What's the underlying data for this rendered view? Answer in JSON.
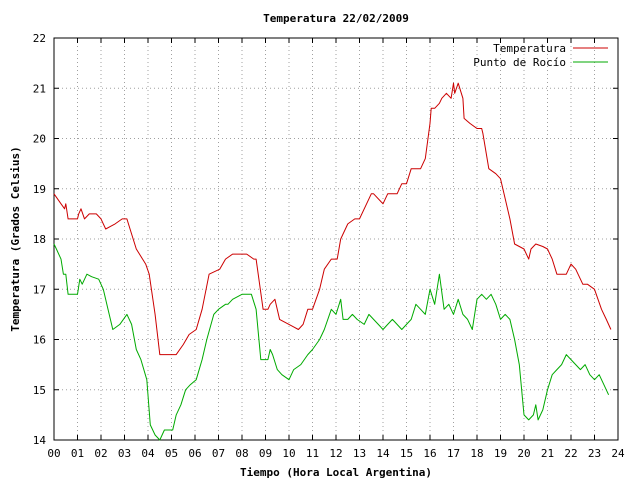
{
  "chart_data": {
    "type": "line",
    "title": "Temperatura 22/02/2009",
    "xlabel": "Tiempo (Hora Local Argentina)",
    "ylabel": "Temperatura (Grados Celsius)",
    "xlim": [
      0,
      24
    ],
    "ylim": [
      14,
      22
    ],
    "x_ticks": [
      0,
      1,
      2,
      3,
      4,
      5,
      6,
      7,
      8,
      9,
      10,
      11,
      12,
      13,
      14,
      15,
      16,
      17,
      18,
      19,
      20,
      21,
      22,
      23,
      24
    ],
    "x_tick_labels": [
      "00",
      "01",
      "02",
      "03",
      "04",
      "05",
      "06",
      "07",
      "08",
      "09",
      "10",
      "11",
      "12",
      "13",
      "14",
      "15",
      "16",
      "17",
      "18",
      "19",
      "20",
      "21",
      "22",
      "23",
      "24"
    ],
    "y_ticks": [
      14,
      15,
      16,
      17,
      18,
      19,
      20,
      21,
      22
    ],
    "y_tick_labels": [
      "14",
      "15",
      "16",
      "17",
      "18",
      "19",
      "20",
      "21",
      "22"
    ],
    "grid": true,
    "legend_position": "top-right",
    "series": [
      {
        "name": "Temperatura",
        "color": "#cc0000",
        "x": [
          0,
          0.15,
          0.3,
          0.45,
          0.5,
          0.6,
          1,
          1.05,
          1.15,
          1.3,
          1.5,
          1.8,
          2,
          2.2,
          2.4,
          2.6,
          2.9,
          3.1,
          3.3,
          3.5,
          3.9,
          4.05,
          4.3,
          4.5,
          4.8,
          5.05,
          5.2,
          5.5,
          5.75,
          6.05,
          6.3,
          6.6,
          7.05,
          7.3,
          7.6,
          7.9,
          8.2,
          8.5,
          8.6,
          8.9,
          9.1,
          9.2,
          9.4,
          9.6,
          10,
          10.2,
          10.4,
          10.6,
          10.8,
          11,
          11.3,
          11.5,
          11.8,
          12.05,
          12.2,
          12.5,
          12.8,
          13,
          13.3,
          13.5,
          13.6,
          14,
          14.2,
          14.4,
          14.6,
          14.8,
          15,
          15.2,
          15.4,
          15.6,
          15.8,
          16,
          16.05,
          16.2,
          16.4,
          16.5,
          16.7,
          16.9,
          17,
          17.05,
          17.2,
          17.4,
          17.45,
          17.7,
          18,
          18.2,
          18.25,
          18.5,
          18.8,
          19,
          19.2,
          19.4,
          19.6,
          19.8,
          20,
          20.2,
          20.3,
          20.5,
          20.8,
          21,
          21.2,
          21.4,
          21.6,
          21.8,
          22,
          22.2,
          22.5,
          22.7,
          23,
          23.3,
          23.5,
          23.7
        ],
        "values": [
          18.9,
          18.8,
          18.7,
          18.6,
          18.7,
          18.4,
          18.4,
          18.5,
          18.6,
          18.4,
          18.5,
          18.5,
          18.4,
          18.2,
          18.25,
          18.3,
          18.4,
          18.4,
          18.1,
          17.8,
          17.5,
          17.3,
          16.5,
          15.7,
          15.7,
          15.7,
          15.7,
          15.9,
          16.1,
          16.2,
          16.6,
          17.3,
          17.4,
          17.6,
          17.7,
          17.7,
          17.7,
          17.6,
          17.6,
          16.6,
          16.6,
          16.7,
          16.8,
          16.4,
          16.3,
          16.25,
          16.2,
          16.3,
          16.6,
          16.6,
          17,
          17.4,
          17.6,
          17.6,
          18,
          18.3,
          18.4,
          18.4,
          18.7,
          18.9,
          18.9,
          18.7,
          18.9,
          18.9,
          18.9,
          19.1,
          19.1,
          19.4,
          19.4,
          19.4,
          19.6,
          20.3,
          20.6,
          20.6,
          20.7,
          20.8,
          20.9,
          20.8,
          21.1,
          20.9,
          21.1,
          20.8,
          20.4,
          20.3,
          20.2,
          20.2,
          20.1,
          19.4,
          19.3,
          19.2,
          18.8,
          18.4,
          17.9,
          17.85,
          17.8,
          17.6,
          17.8,
          17.9,
          17.85,
          17.8,
          17.6,
          17.3,
          17.3,
          17.3,
          17.5,
          17.4,
          17.1,
          17.1,
          17,
          16.6,
          16.4,
          16.2
        ]
      },
      {
        "name": "Punto de Rocío",
        "color": "#00aa00",
        "x": [
          0,
          0.1,
          0.3,
          0.4,
          0.5,
          0.6,
          0.9,
          1,
          1.1,
          1.2,
          1.4,
          1.6,
          1.9,
          2.1,
          2.3,
          2.5,
          2.8,
          3.1,
          3.3,
          3.5,
          3.7,
          3.95,
          4.1,
          4.3,
          4.5,
          4.7,
          4.9,
          5.05,
          5.2,
          5.4,
          5.6,
          5.8,
          6.05,
          6.3,
          6.5,
          6.8,
          7,
          7.3,
          7.4,
          7.6,
          8,
          8.2,
          8.4,
          8.6,
          8.8,
          9.1,
          9.2,
          9.3,
          9.5,
          9.7,
          10,
          10.2,
          10.5,
          10.8,
          11,
          11.3,
          11.5,
          11.8,
          12,
          12.2,
          12.3,
          12.5,
          12.7,
          12.9,
          13.2,
          13.4,
          13.6,
          13.8,
          14,
          14.2,
          14.4,
          14.6,
          14.8,
          15,
          15.2,
          15.4,
          15.6,
          15.8,
          16,
          16.2,
          16.4,
          16.6,
          16.8,
          17,
          17.2,
          17.4,
          17.6,
          17.8,
          18,
          18.2,
          18.4,
          18.6,
          18.8,
          19,
          19.2,
          19.4,
          19.6,
          19.8,
          20,
          20.2,
          20.4,
          20.5,
          20.6,
          20.8,
          21,
          21.2,
          21.4,
          21.6,
          21.8,
          22,
          22.2,
          22.4,
          22.6,
          22.8,
          23,
          23.2,
          23.4,
          23.6
        ],
        "values": [
          17.9,
          17.8,
          17.6,
          17.3,
          17.3,
          16.9,
          16.9,
          16.9,
          17.2,
          17.1,
          17.3,
          17.25,
          17.2,
          17,
          16.6,
          16.2,
          16.3,
          16.5,
          16.3,
          15.8,
          15.6,
          15.2,
          14.3,
          14.1,
          14,
          14.2,
          14.2,
          14.2,
          14.5,
          14.7,
          15,
          15.1,
          15.2,
          15.6,
          16,
          16.5,
          16.6,
          16.7,
          16.7,
          16.8,
          16.9,
          16.9,
          16.9,
          16.6,
          15.6,
          15.6,
          15.8,
          15.7,
          15.4,
          15.3,
          15.2,
          15.4,
          15.5,
          15.7,
          15.8,
          16,
          16.2,
          16.6,
          16.5,
          16.8,
          16.4,
          16.4,
          16.5,
          16.4,
          16.3,
          16.5,
          16.4,
          16.3,
          16.2,
          16.3,
          16.4,
          16.3,
          16.2,
          16.3,
          16.4,
          16.7,
          16.6,
          16.5,
          17,
          16.7,
          17.3,
          16.6,
          16.7,
          16.5,
          16.8,
          16.5,
          16.4,
          16.2,
          16.8,
          16.9,
          16.8,
          16.9,
          16.7,
          16.4,
          16.5,
          16.4,
          16,
          15.5,
          14.5,
          14.4,
          14.5,
          14.7,
          14.4,
          14.6,
          15,
          15.3,
          15.4,
          15.5,
          15.7,
          15.6,
          15.5,
          15.4,
          15.5,
          15.3,
          15.2,
          15.3,
          15.1,
          14.9
        ]
      }
    ]
  }
}
